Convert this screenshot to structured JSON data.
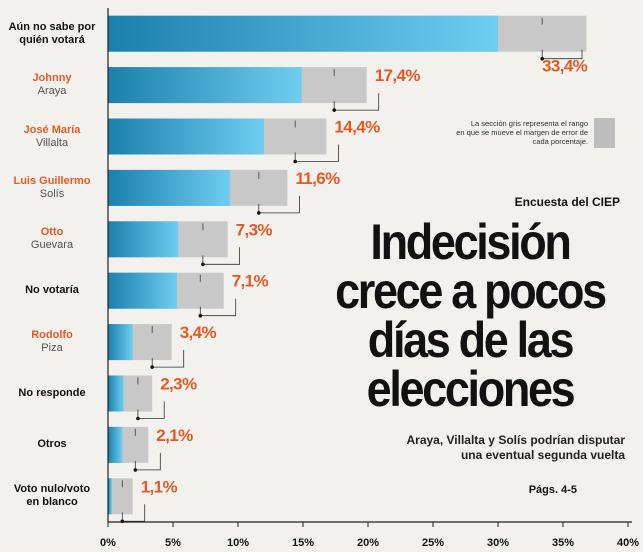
{
  "headline": {
    "source": "Encuesta del CIEP",
    "lines": [
      "Indecisión",
      "crece a pocos",
      "días de las",
      "elecciones"
    ],
    "subtitle_lines": [
      "Araya, Villalta y Solís podrían  disputar",
      "una eventual segunda vuelta"
    ],
    "pages": "Págs. 4-5"
  },
  "legend_note": [
    "La sección gris representa el rango",
    "en que se mueve el margen de error de",
    "cada porcentaje."
  ],
  "colors": {
    "background": "#f3f1ee",
    "bar_dark": "#1b80ad",
    "bar_light": "#6fcdf0",
    "error_range": "#c8c8c8",
    "value_label": "#e35a24",
    "highlight_name": "#e35a24"
  },
  "chart_data": {
    "type": "bar",
    "orientation": "horizontal",
    "title": "",
    "xlabel": "",
    "ylabel": "",
    "xlim": [
      0,
      40
    ],
    "x_ticks": [
      "0%",
      "5%",
      "10%",
      "15%",
      "20%",
      "25%",
      "30%",
      "35%",
      "40%"
    ],
    "grid": false,
    "categories": [
      {
        "name": "Aún no sabe por",
        "name2": "quién votará",
        "highlight": false
      },
      {
        "name": "Johnny",
        "name2": "Araya",
        "highlight": true
      },
      {
        "name": "José María",
        "name2": "Villalta",
        "highlight": true
      },
      {
        "name": "Luis Guillermo",
        "name2": "Solís",
        "highlight": true
      },
      {
        "name": "Otto",
        "name2": "Guevara",
        "highlight": true
      },
      {
        "name": "No votaría",
        "name2": "",
        "highlight": false
      },
      {
        "name": "Rodolfo",
        "name2": "Piza",
        "highlight": true
      },
      {
        "name": "No responde",
        "name2": "",
        "highlight": false
      },
      {
        "name": "Otros",
        "name2": "",
        "highlight": false
      },
      {
        "name": "Voto nulo/voto",
        "name2": "en blanco",
        "highlight": false
      }
    ],
    "values": [
      33.4,
      17.4,
      14.4,
      11.6,
      7.3,
      7.1,
      3.4,
      2.3,
      2.1,
      1.1
    ],
    "value_labels": [
      "33,4%",
      "17,4%",
      "14,4%",
      "11,6%",
      "7,3%",
      "7,1%",
      "3,4%",
      "2,3%",
      "2,1%",
      "1,1%"
    ],
    "error_low": [
      30.0,
      14.9,
      12.0,
      9.4,
      5.4,
      5.3,
      1.9,
      1.2,
      1.1,
      0.3
    ],
    "error_high": [
      36.8,
      19.9,
      16.8,
      13.8,
      9.2,
      8.9,
      4.9,
      3.4,
      3.1,
      1.9
    ]
  }
}
